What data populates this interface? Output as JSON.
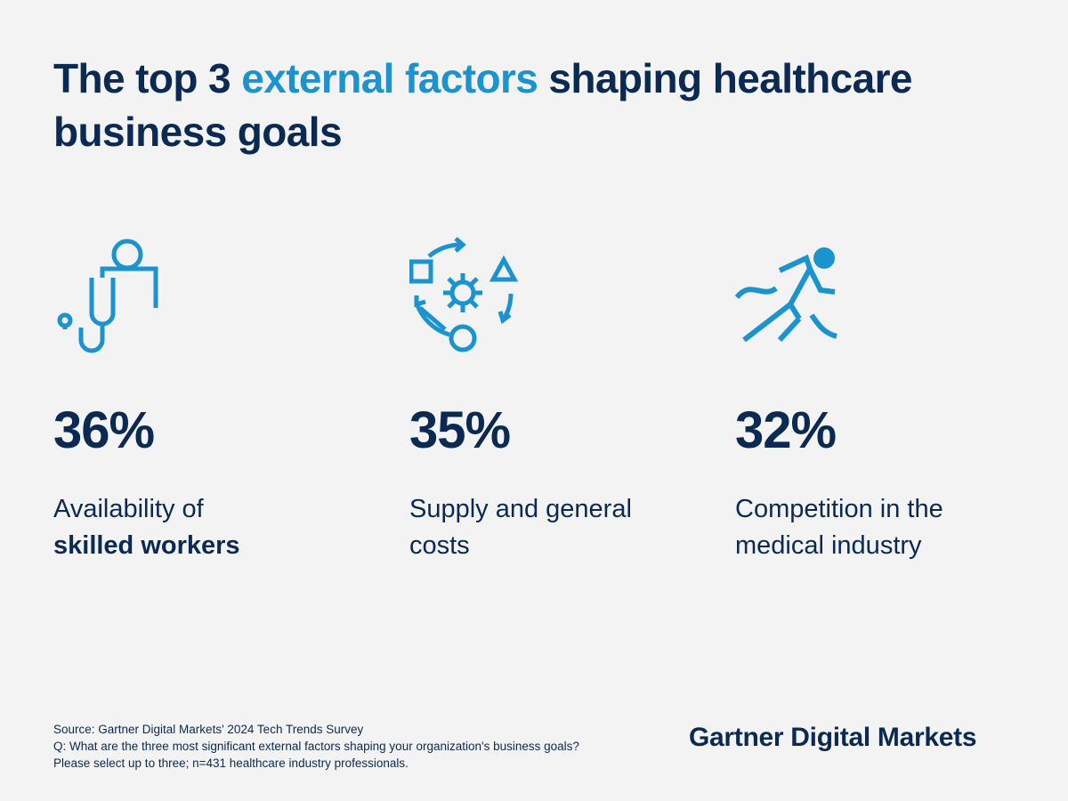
{
  "title": {
    "part1": "The top 3 ",
    "highlight": "external factors",
    "part2": " shaping healthcare business goals"
  },
  "stats": [
    {
      "icon": "stethoscope-doctor-icon",
      "value": "36%",
      "desc_plain": "Availability of ",
      "desc_bold": "skilled workers"
    },
    {
      "icon": "cycle-gear-shapes-icon",
      "value": "35%",
      "desc_plain": "Supply and general costs",
      "desc_bold": ""
    },
    {
      "icon": "runner-icon",
      "value": "32%",
      "desc_plain": "Competition in the medical industry",
      "desc_bold": ""
    }
  ],
  "footnote": {
    "line1": "Source: Gartner Digital Markets' 2024 Tech Trends Survey",
    "line2": "Q: What are the three most significant external factors shaping your organization's business goals?",
    "line3": "Please select up to three; n=431 healthcare industry professionals."
  },
  "brand": "Gartner Digital Markets",
  "colors": {
    "navy": "#0a2a54",
    "accent": "#1a93cf",
    "background": "#f3f3f3"
  }
}
